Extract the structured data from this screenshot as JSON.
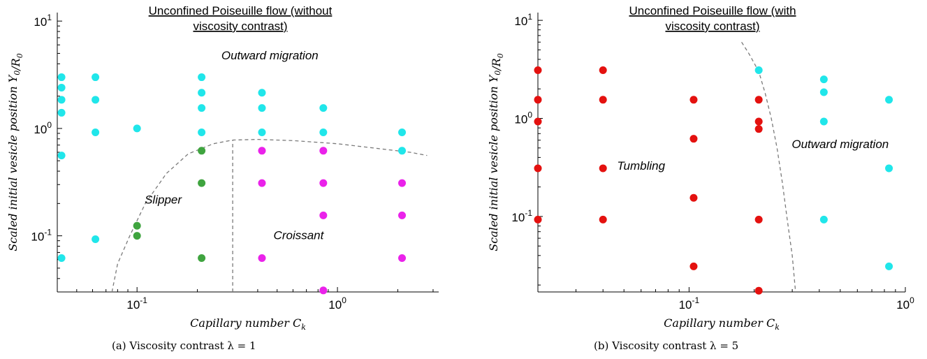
{
  "captions": [
    "(a) Viscosity contrast λ = 1",
    "(b)  Viscosity contrast λ = 5"
  ],
  "colors": {
    "outward": "#20e6ea",
    "slipper": "#3fa43f",
    "croissant": "#ea22ea",
    "tumbling": "#e4110f",
    "boundary": "#7a7a7a",
    "axis": "#000000"
  },
  "chart_data": [
    {
      "type": "scatter",
      "title_lines": [
        "Unconfined Poiseuille flow (without",
        "viscosity contrast)"
      ],
      "xlabel": "Capillary number C_k",
      "ylabel": "Scaled initial vesicle position Y_0/R_0",
      "x_scale": "log",
      "y_scale": "log",
      "xlim": [
        0.04,
        3.2
      ],
      "ylim": [
        0.03,
        12
      ],
      "x_ticks": [
        {
          "value": 0.1,
          "label": "10^-1"
        },
        {
          "value": 1,
          "label": "10^0"
        }
      ],
      "y_ticks": [
        {
          "value": 0.1,
          "label": "10^-1"
        },
        {
          "value": 1,
          "label": "10^0"
        },
        {
          "value": 10,
          "label": "10^1"
        }
      ],
      "grid": false,
      "annotations": [
        {
          "text": "Outward migration",
          "x": 0.46,
          "y": 4.4
        },
        {
          "text": "Slipper",
          "x": 0.135,
          "y": 0.2
        },
        {
          "text": "Croissant",
          "x": 0.64,
          "y": 0.093
        }
      ],
      "series": [
        {
          "key": "outward",
          "points": [
            [
              0.042,
              3.0
            ],
            [
              0.042,
              2.4
            ],
            [
              0.042,
              1.85
            ],
            [
              0.042,
              1.4
            ],
            [
              0.042,
              0.56
            ],
            [
              0.042,
              0.062
            ],
            [
              0.062,
              3.0
            ],
            [
              0.062,
              1.85
            ],
            [
              0.062,
              0.92
            ],
            [
              0.062,
              0.093
            ],
            [
              0.1,
              1.0
            ],
            [
              0.21,
              3.0
            ],
            [
              0.21,
              2.15
            ],
            [
              0.21,
              1.55
            ],
            [
              0.21,
              0.92
            ],
            [
              0.42,
              2.15
            ],
            [
              0.42,
              1.55
            ],
            [
              0.42,
              0.92
            ],
            [
              0.85,
              1.55
            ],
            [
              0.85,
              0.92
            ],
            [
              2.1,
              0.92
            ],
            [
              2.1,
              0.62
            ]
          ]
        },
        {
          "key": "slipper",
          "points": [
            [
              0.1,
              0.124
            ],
            [
              0.1,
              0.1
            ],
            [
              0.21,
              0.62
            ],
            [
              0.21,
              0.31
            ],
            [
              0.21,
              0.062
            ]
          ]
        },
        {
          "key": "croissant",
          "points": [
            [
              0.42,
              0.62
            ],
            [
              0.42,
              0.31
            ],
            [
              0.42,
              0.062
            ],
            [
              0.85,
              0.62
            ],
            [
              0.85,
              0.31
            ],
            [
              0.85,
              0.155
            ],
            [
              0.85,
              0.031
            ],
            [
              2.1,
              0.31
            ],
            [
              2.1,
              0.155
            ],
            [
              2.1,
              0.062
            ]
          ]
        }
      ],
      "boundaries": [
        {
          "points": [
            [
              0.075,
              0.03
            ],
            [
              0.08,
              0.055
            ],
            [
              0.092,
              0.1
            ],
            [
              0.11,
              0.2
            ],
            [
              0.14,
              0.38
            ],
            [
              0.18,
              0.58
            ],
            [
              0.24,
              0.72
            ],
            [
              0.3,
              0.78
            ],
            [
              0.4,
              0.79
            ],
            [
              0.6,
              0.77
            ],
            [
              1.0,
              0.72
            ],
            [
              1.6,
              0.65
            ],
            [
              2.3,
              0.6
            ],
            [
              2.8,
              0.56
            ]
          ]
        },
        {
          "points": [
            [
              0.3,
              0.03
            ],
            [
              0.3,
              0.78
            ]
          ]
        }
      ]
    },
    {
      "type": "scatter",
      "title_lines": [
        "Unconfined Poiseuille flow (with",
        "viscosity contrast)"
      ],
      "xlabel": "Capillary number C_k",
      "ylabel": "Scaled initial vesicle position Y_0/R_0",
      "x_scale": "log",
      "y_scale": "log",
      "xlim": [
        0.02,
        1.0
      ],
      "ylim": [
        0.017,
        12
      ],
      "x_ticks": [
        {
          "value": 0.1,
          "label": "10^-1"
        },
        {
          "value": 1,
          "label": "10^0"
        }
      ],
      "y_ticks": [
        {
          "value": 0.1,
          "label": "10^-1"
        },
        {
          "value": 1,
          "label": "10^0"
        },
        {
          "value": 10,
          "label": "10^1"
        }
      ],
      "grid": false,
      "annotations": [
        {
          "text": "Tumbling",
          "x": 0.06,
          "y": 0.3
        },
        {
          "text": "Outward migration",
          "x": 0.5,
          "y": 0.5
        }
      ],
      "series": [
        {
          "key": "tumbling",
          "points": [
            [
              0.02,
              3.1
            ],
            [
              0.02,
              1.55
            ],
            [
              0.02,
              0.93
            ],
            [
              0.02,
              0.31
            ],
            [
              0.02,
              0.093
            ],
            [
              0.04,
              3.1
            ],
            [
              0.04,
              1.55
            ],
            [
              0.04,
              0.31
            ],
            [
              0.04,
              0.093
            ],
            [
              0.105,
              1.55
            ],
            [
              0.105,
              0.62
            ],
            [
              0.105,
              0.155
            ],
            [
              0.105,
              0.031
            ],
            [
              0.21,
              1.55
            ],
            [
              0.21,
              0.93
            ],
            [
              0.21,
              0.78
            ],
            [
              0.21,
              0.093
            ],
            [
              0.21,
              0.0175
            ]
          ]
        },
        {
          "key": "outward",
          "points": [
            [
              0.21,
              3.1
            ],
            [
              0.42,
              2.5
            ],
            [
              0.42,
              1.85
            ],
            [
              0.42,
              0.93
            ],
            [
              0.42,
              0.093
            ],
            [
              0.84,
              1.55
            ],
            [
              0.84,
              0.31
            ],
            [
              0.84,
              0.031
            ]
          ]
        }
      ],
      "boundaries": [
        {
          "points": [
            [
              0.175,
              6.0
            ],
            [
              0.19,
              4.5
            ],
            [
              0.21,
              3.0
            ],
            [
              0.225,
              1.8
            ],
            [
              0.24,
              1.0
            ],
            [
              0.255,
              0.5
            ],
            [
              0.27,
              0.22
            ],
            [
              0.285,
              0.09
            ],
            [
              0.3,
              0.04
            ],
            [
              0.31,
              0.018
            ]
          ]
        }
      ]
    }
  ]
}
